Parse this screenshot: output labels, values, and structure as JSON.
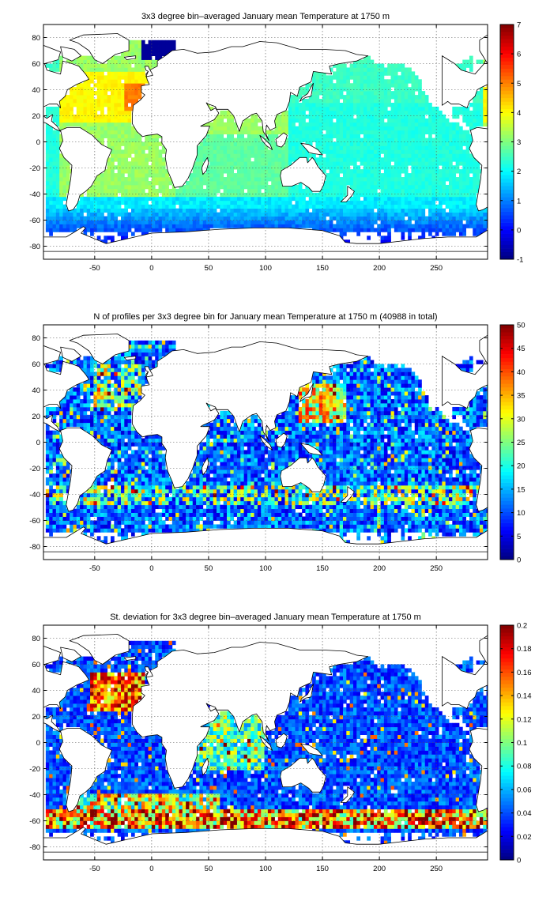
{
  "chart_data": [
    {
      "type": "heatmap",
      "title": "3x3 degree bin–averaged January mean Temperature at 1750 m",
      "x_ticks": [
        -50,
        0,
        50,
        100,
        150,
        200,
        250
      ],
      "y_ticks": [
        80,
        60,
        40,
        20,
        0,
        -20,
        -40,
        -60,
        -80
      ],
      "xlim": [
        -95,
        295
      ],
      "ylim": [
        -90,
        90
      ],
      "grid": true,
      "colorbar": {
        "range": [
          -1,
          7
        ],
        "ticks": [
          7,
          6,
          5,
          4,
          3,
          2,
          1,
          0,
          -1
        ],
        "colormap": "jet"
      },
      "field": "temperature"
    },
    {
      "type": "heatmap",
      "title": "N of profiles per 3x3 degree bin for January mean Temperature at 1750 m (40988 in total)",
      "x_ticks": [
        -50,
        0,
        50,
        100,
        150,
        200,
        250
      ],
      "y_ticks": [
        80,
        60,
        40,
        20,
        0,
        -20,
        -40,
        -60,
        -80
      ],
      "xlim": [
        -95,
        295
      ],
      "ylim": [
        -90,
        90
      ],
      "grid": true,
      "colorbar": {
        "range": [
          0,
          50
        ],
        "ticks": [
          50,
          45,
          40,
          35,
          30,
          25,
          20,
          15,
          10,
          5,
          0
        ],
        "colormap": "jet"
      },
      "field": "count"
    },
    {
      "type": "heatmap",
      "title": "St. deviation for 3x3 degree bin–averaged January mean Temperature at 1750 m",
      "x_ticks": [
        -50,
        0,
        50,
        100,
        150,
        200,
        250
      ],
      "y_ticks": [
        80,
        60,
        40,
        20,
        0,
        -20,
        -40,
        -60,
        -80
      ],
      "xlim": [
        -95,
        295
      ],
      "ylim": [
        -90,
        90
      ],
      "grid": true,
      "colorbar": {
        "range": [
          0,
          0.2
        ],
        "ticks": [
          0.2,
          0.18,
          0.16,
          0.14,
          0.12,
          0.1,
          0.08,
          0.06,
          0.04,
          0.02,
          0
        ],
        "colormap": "jet"
      },
      "field": "stdev"
    }
  ]
}
